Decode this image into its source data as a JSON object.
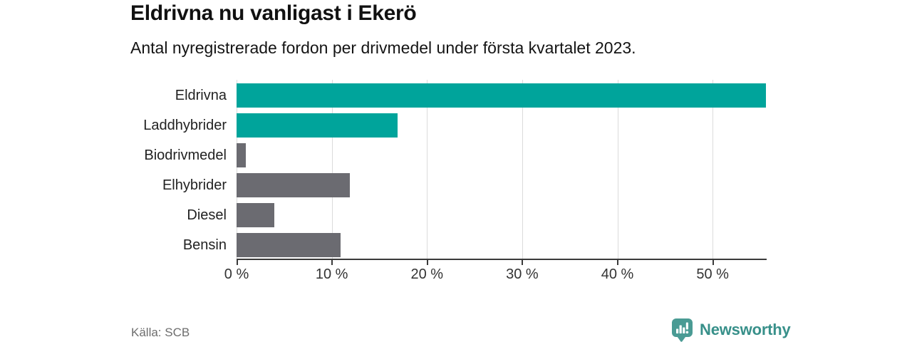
{
  "header": {
    "title": "Eldrivna nu vanligast i Ekerö",
    "subtitle": "Antal nyregistrerade fordon per drivmedel under första kvartalet 2023."
  },
  "chart_data": {
    "type": "bar",
    "orientation": "horizontal",
    "title": "Eldrivna nu vanligast i Ekerö",
    "subtitle": "Antal nyregistrerade fordon per drivmedel under första kvartalet 2023.",
    "categories": [
      "Eldrivna",
      "Laddhybrider",
      "Biodrivmedel",
      "Elhybrider",
      "Diesel",
      "Bensin"
    ],
    "values": [
      55.6,
      16.9,
      1.0,
      11.9,
      4.0,
      10.9
    ],
    "unit": "%",
    "bar_colors": [
      "#00A49B",
      "#00A49B",
      "#6B6B71",
      "#6B6B71",
      "#6B6B71",
      "#6B6B71"
    ],
    "xlim": [
      0,
      55.6
    ],
    "x_ticks": [
      0,
      10,
      20,
      30,
      40,
      50
    ],
    "x_tick_labels": [
      "0 %",
      "10 %",
      "20 %",
      "30 %",
      "40 %",
      "50 %"
    ],
    "grid": true,
    "legend": false
  },
  "footer": {
    "source": "Källa: SCB",
    "brand": "Newsworthy"
  },
  "colors": {
    "accent_teal": "#00A49B",
    "neutral_gray": "#6B6B71",
    "grid_line": "#DBDBDB",
    "axis_line": "#3A3A3A",
    "text_dark": "#111111",
    "text_muted": "#6E6E6E",
    "logo_teal": "#38908A"
  },
  "icons": {
    "logo_icon": "newsworthy-speech-bubble-barchart-icon"
  }
}
